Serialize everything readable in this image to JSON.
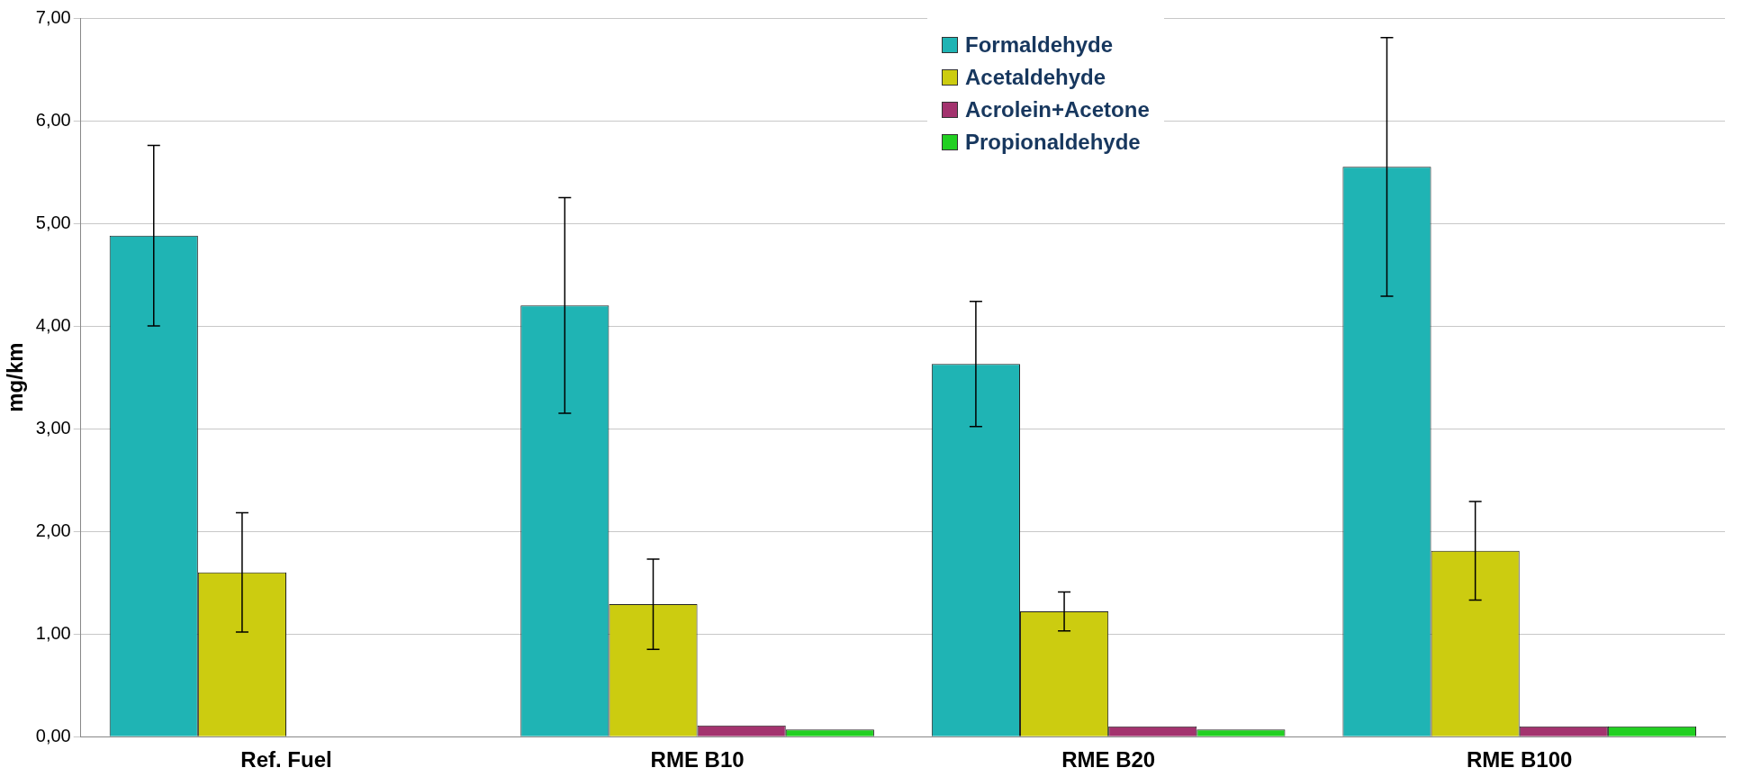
{
  "chart_data": {
    "type": "bar",
    "ylabel": "mg/km",
    "categories": [
      "Ref. Fuel",
      "RME B10",
      "RME B20",
      "RME B100"
    ],
    "series": [
      {
        "name": "Formaldehyde",
        "color": "#1fb4b4",
        "values": [
          4.88,
          4.2,
          3.63,
          5.55
        ],
        "errors": [
          0.88,
          1.05,
          0.61,
          1.26
        ]
      },
      {
        "name": "Acetaldehyde",
        "color": "#cccc10",
        "values": [
          1.6,
          1.29,
          1.22,
          1.81
        ],
        "errors": [
          0.58,
          0.44,
          0.19,
          0.48
        ]
      },
      {
        "name": "Acrolein+Acetone",
        "color": "#a3336e",
        "values": [
          null,
          0.11,
          0.1,
          0.1
        ]
      },
      {
        "name": "Propionaldehyde",
        "color": "#22d022",
        "values": [
          null,
          0.07,
          0.07,
          0.1
        ]
      }
    ],
    "ylim": [
      0,
      7
    ],
    "yticks": [
      {
        "value": 0,
        "label": "0,00"
      },
      {
        "value": 1,
        "label": "1,00"
      },
      {
        "value": 2,
        "label": "2,00"
      },
      {
        "value": 3,
        "label": "3,00"
      },
      {
        "value": 4,
        "label": "4,00"
      },
      {
        "value": 5,
        "label": "5,00"
      },
      {
        "value": 6,
        "label": "6,00"
      },
      {
        "value": 7,
        "label": "7,00"
      }
    ],
    "grid": "y",
    "legend": "top"
  }
}
